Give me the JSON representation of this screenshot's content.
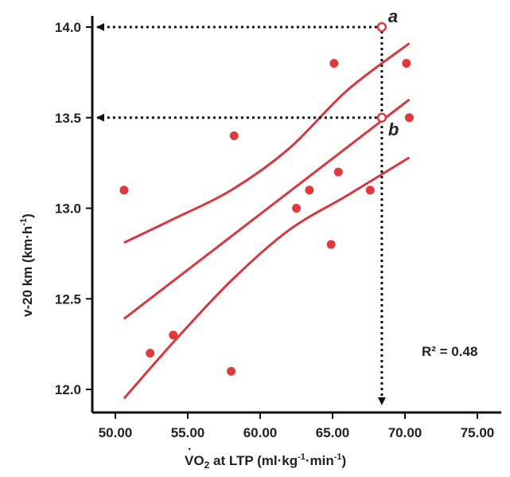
{
  "chart_data": {
    "type": "scatter",
    "title": "",
    "xlabel_parts": [
      "V",
      "O",
      "2",
      " at LTP (ml·kg",
      "-1",
      "·min",
      "-1",
      ")"
    ],
    "ylabel_parts": [
      "v-20 km (km·h",
      "-1",
      ")"
    ],
    "xlim": [
      48.0,
      76.0
    ],
    "ylim": [
      11.85,
      14.1
    ],
    "xticks": [
      "50.00",
      "55.00",
      "60.00",
      "65.00",
      "70.00",
      "75.00"
    ],
    "xtick_values": [
      50,
      55,
      60,
      65,
      70,
      75
    ],
    "yticks": [
      "12.0",
      "12.5",
      "13.0",
      "13.5",
      "14.0"
    ],
    "ytick_values": [
      12.0,
      12.5,
      13.0,
      13.5,
      14.0
    ],
    "grid": false,
    "colors": {
      "points": "#e0393c",
      "lines": "#d23a40",
      "axes": "#111111",
      "guides": "#111111"
    },
    "points": [
      {
        "x": 50.6,
        "y": 13.1
      },
      {
        "x": 52.4,
        "y": 12.2
      },
      {
        "x": 54.0,
        "y": 12.3
      },
      {
        "x": 58.0,
        "y": 12.1
      },
      {
        "x": 58.2,
        "y": 13.4
      },
      {
        "x": 62.5,
        "y": 13.0
      },
      {
        "x": 63.4,
        "y": 13.1
      },
      {
        "x": 64.9,
        "y": 12.8
      },
      {
        "x": 65.1,
        "y": 13.8
      },
      {
        "x": 65.4,
        "y": 13.2
      },
      {
        "x": 67.6,
        "y": 13.1
      },
      {
        "x": 70.1,
        "y": 13.8
      },
      {
        "x": 70.3,
        "y": 13.5
      }
    ],
    "regression": {
      "x_range": [
        50.6,
        70.3
      ],
      "fit": [
        12.39,
        13.6
      ],
      "ci_upper_x": [
        50.6,
        54.0,
        58.0,
        62.0,
        66.0,
        70.3
      ],
      "ci_upper_y": [
        12.81,
        12.94,
        13.1,
        13.33,
        13.65,
        13.91
      ],
      "ci_lower_x": [
        50.6,
        54.0,
        58.0,
        62.0,
        66.0,
        70.3
      ],
      "ci_lower_y": [
        11.95,
        12.26,
        12.6,
        12.88,
        13.07,
        13.28
      ]
    },
    "annotations": {
      "a": {
        "label": "a",
        "x": 68.4,
        "y": 14.0
      },
      "b": {
        "label": "b",
        "x": 68.4,
        "y": 13.5
      },
      "r2": "R² = 0.48"
    }
  }
}
